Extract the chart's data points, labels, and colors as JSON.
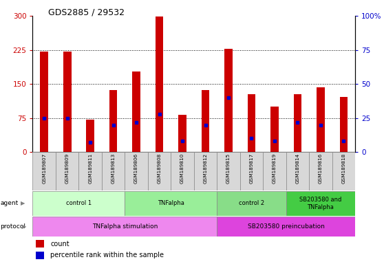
{
  "title": "GDS2885 / 29532",
  "samples": [
    "GSM189807",
    "GSM189809",
    "GSM189811",
    "GSM189813",
    "GSM189806",
    "GSM189808",
    "GSM189810",
    "GSM189812",
    "GSM189815",
    "GSM189817",
    "GSM189819",
    "GSM189814",
    "GSM189816",
    "GSM189818"
  ],
  "counts": [
    222,
    222,
    72,
    137,
    178,
    298,
    82,
    137,
    228,
    128,
    100,
    128,
    143,
    122
  ],
  "percentile_ranks": [
    25,
    25,
    7,
    20,
    22,
    28,
    8,
    20,
    40,
    10,
    8,
    22,
    20,
    8
  ],
  "bar_color": "#cc0000",
  "pct_color": "#0000cc",
  "ylim_left": [
    0,
    300
  ],
  "ylim_right": [
    0,
    100
  ],
  "yticks_left": [
    0,
    75,
    150,
    225,
    300
  ],
  "yticks_right": [
    0,
    25,
    50,
    75,
    100
  ],
  "ytick_labels_left": [
    "0",
    "75",
    "150",
    "225",
    "300"
  ],
  "ytick_labels_right": [
    "0",
    "25",
    "50",
    "75",
    "100%"
  ],
  "hlines": [
    75,
    150,
    225
  ],
  "left_tick_color": "#cc0000",
  "right_tick_color": "#0000cc",
  "agent_groups": [
    {
      "label": "control 1",
      "start": 0,
      "end": 4,
      "color": "#ccffcc"
    },
    {
      "label": "TNFalpha",
      "start": 4,
      "end": 8,
      "color": "#99ee99"
    },
    {
      "label": "control 2",
      "start": 8,
      "end": 11,
      "color": "#88dd88"
    },
    {
      "label": "SB203580 and\nTNFalpha",
      "start": 11,
      "end": 14,
      "color": "#44cc44"
    }
  ],
  "protocol_groups": [
    {
      "label": "TNFalpha stimulation",
      "start": 0,
      "end": 8,
      "color": "#ee88ee"
    },
    {
      "label": "SB203580 preincubation",
      "start": 8,
      "end": 14,
      "color": "#dd44dd"
    }
  ],
  "bar_width": 0.35
}
